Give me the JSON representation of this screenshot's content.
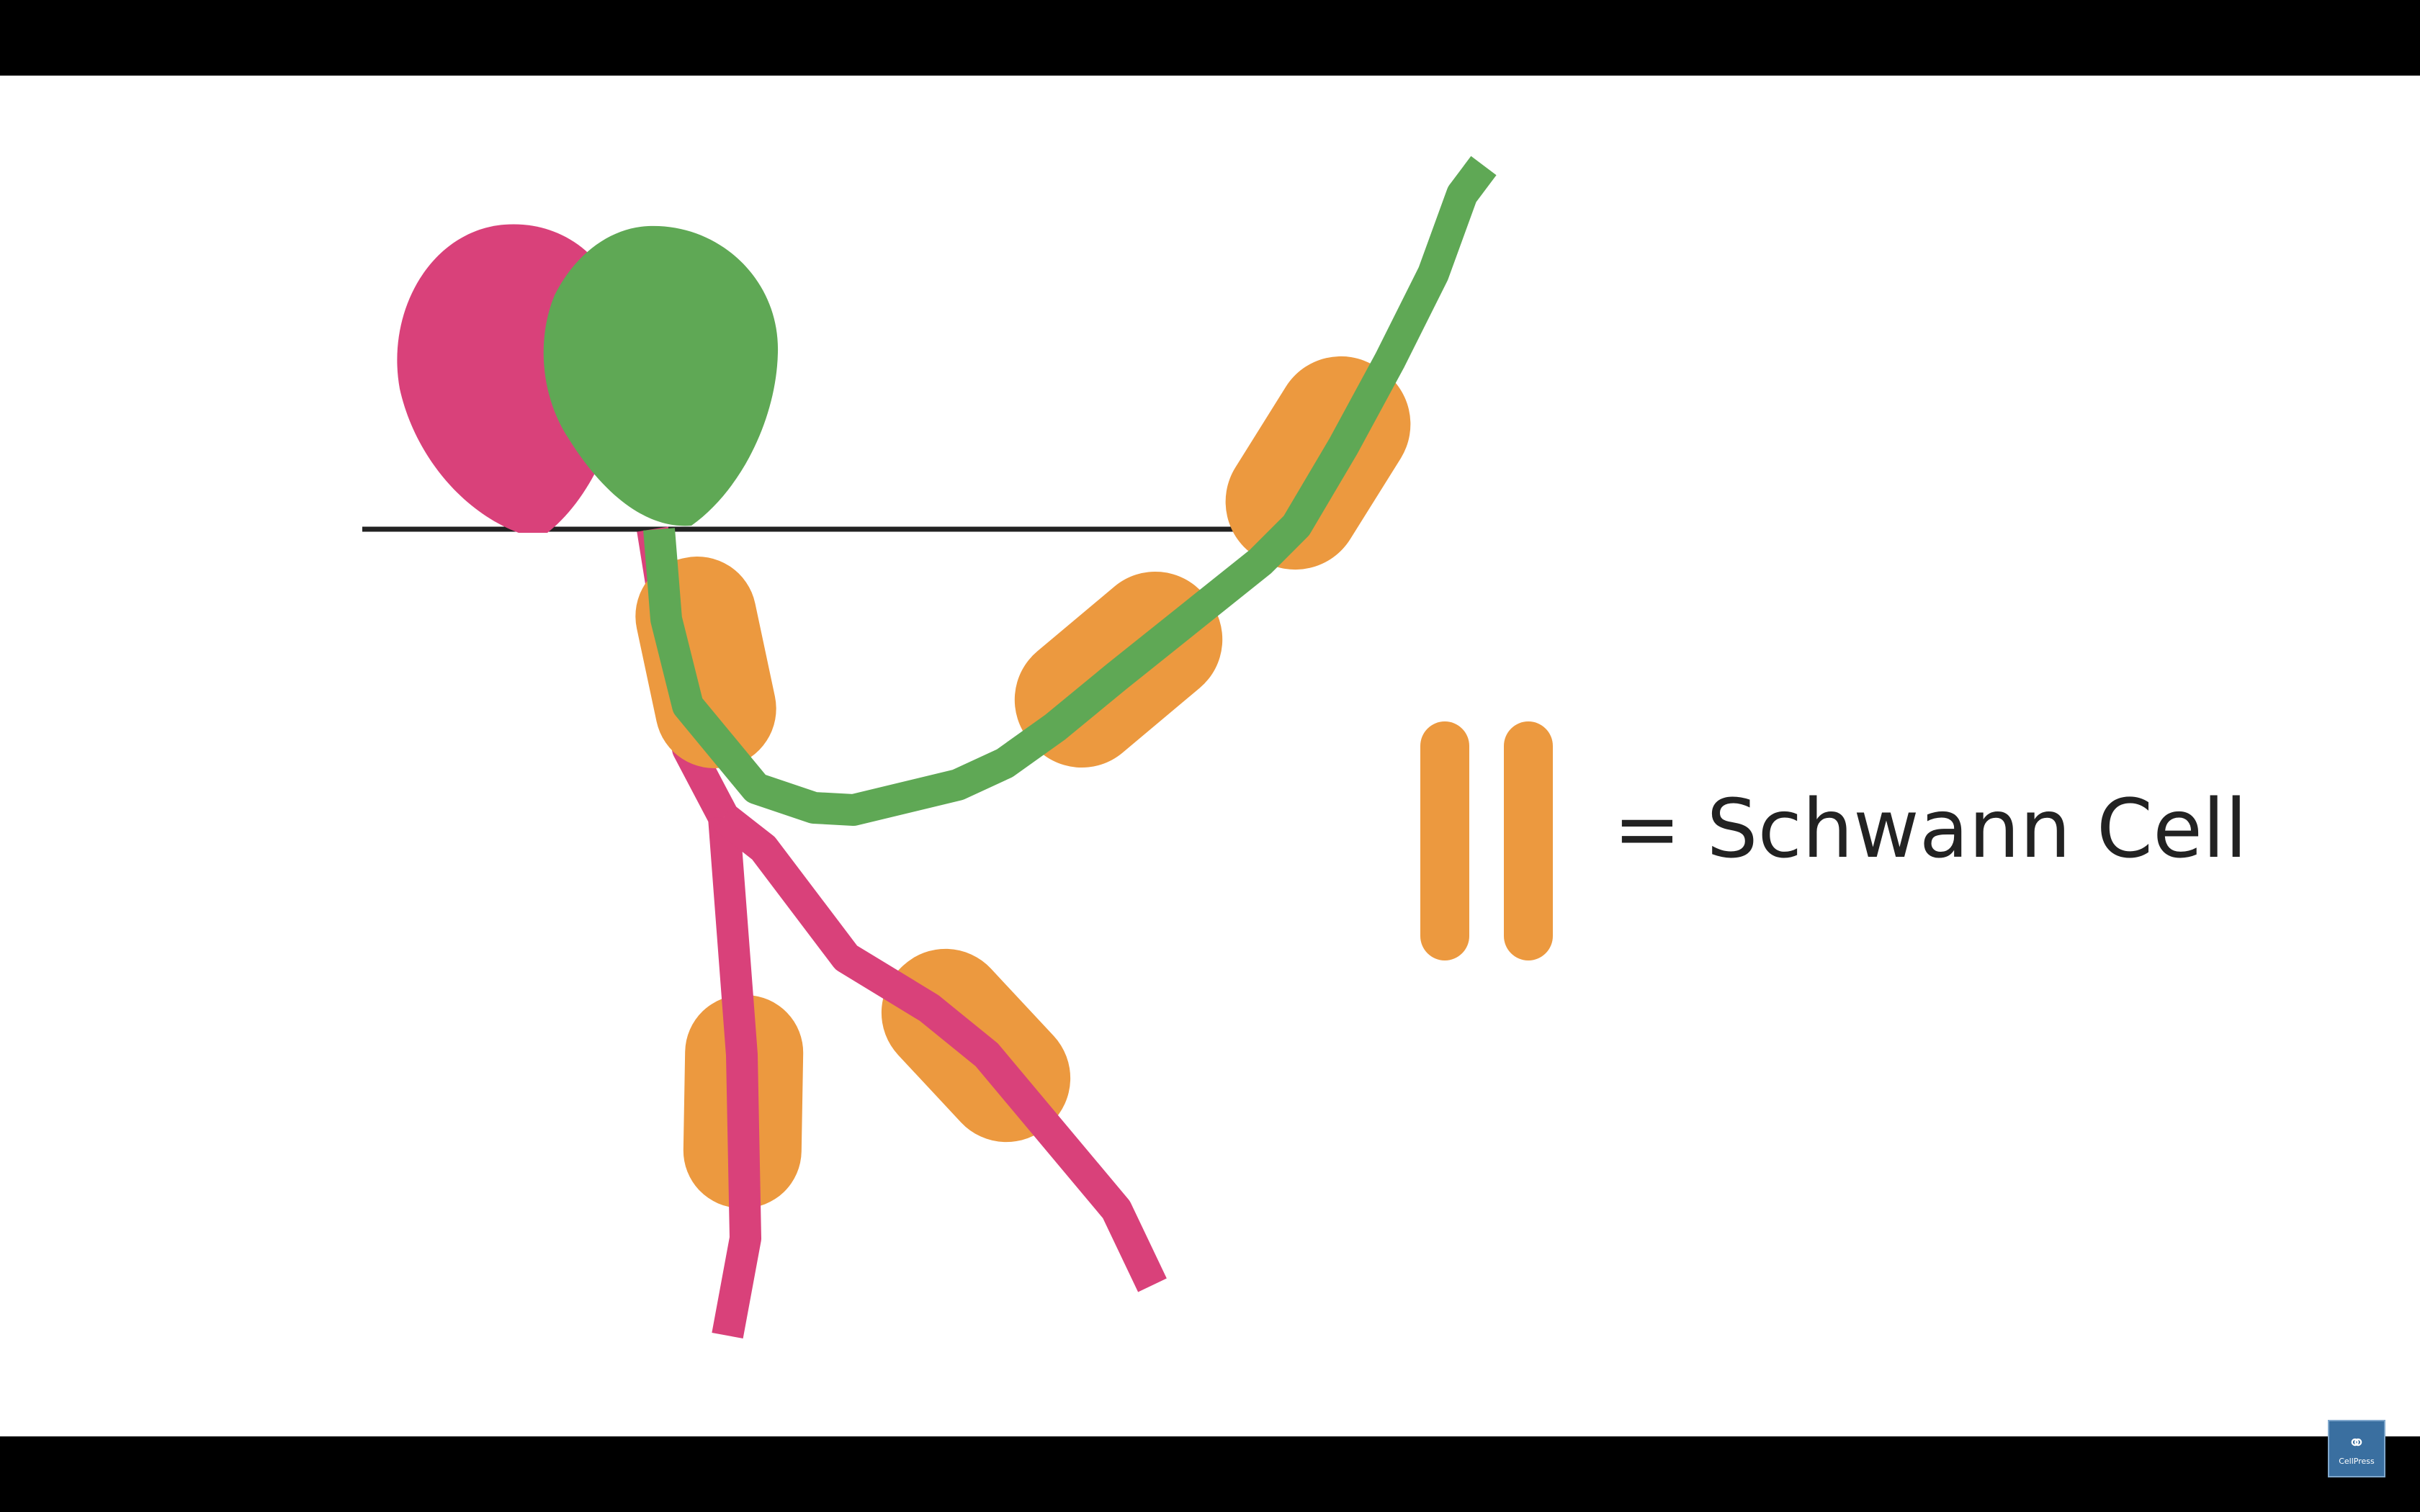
{
  "legend": {
    "label": "= Schwann Cell",
    "symbol_icon": "schwann-cell-icon"
  },
  "logo": {
    "text": "CellPress",
    "icon": "cellpress-logo-icon"
  },
  "colors": {
    "letterbox": "#000000",
    "background": "#ffffff",
    "neuron_pink": "#d9417a",
    "neuron_green": "#5fa855",
    "schwann_orange": "#ec993f",
    "surface_line": "#222222",
    "logo_bg": "#3a6fa0"
  }
}
